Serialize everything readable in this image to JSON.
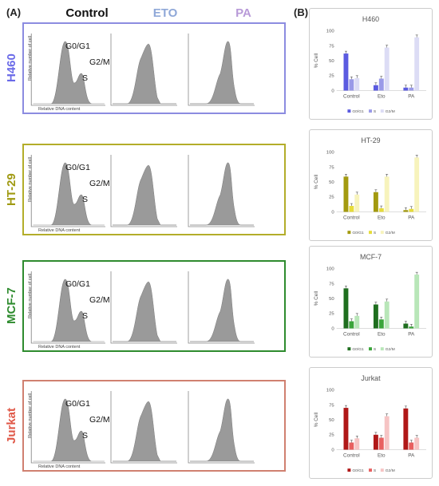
{
  "panel_labels": {
    "a": "(A)",
    "b": "(B)"
  },
  "column_headers": [
    {
      "label": "Control",
      "color": "#111111"
    },
    {
      "label": "ETO",
      "color": "#8fa8d8"
    },
    {
      "label": "PA",
      "color": "#b89ad8"
    }
  ],
  "axis_text": {
    "y": "Relative number of cell",
    "x": "Relative DNA content"
  },
  "peak_labels": {
    "g0g1": "G0/G1",
    "s": "S",
    "g2m": "G2/M"
  },
  "cell_lines": [
    {
      "name": "H460",
      "color": "#6a6ae8",
      "border": "#8c8ce0"
    },
    {
      "name": "HT-29",
      "color": "#a09a12",
      "border": "#b3ad2a"
    },
    {
      "name": "MCF-7",
      "color": "#2e8b2e",
      "border": "#2e8b2e"
    },
    {
      "name": "Jurkat",
      "color": "#e05a4a",
      "border": "#d08070"
    }
  ],
  "chart_data": [
    {
      "type": "bar",
      "title": "H460",
      "ylabel": "% Cell",
      "categories": [
        "Control",
        "Eto",
        "PA"
      ],
      "ylim": [
        0,
        100
      ],
      "yticks": [
        "0",
        "25",
        "50",
        "75",
        "100"
      ],
      "series": [
        {
          "name": "G0/G1",
          "color": "#5b5be0",
          "values": [
            62,
            9,
            5
          ]
        },
        {
          "name": "S",
          "color": "#9a9ae8",
          "values": [
            19,
            20,
            5
          ]
        },
        {
          "name": "G2/M",
          "color": "#dcdcf5",
          "values": [
            21,
            72,
            89
          ]
        }
      ]
    },
    {
      "type": "bar",
      "title": "HT-29",
      "ylabel": "% Cell",
      "categories": [
        "Control",
        "Eto",
        "PA"
      ],
      "ylim": [
        0,
        100
      ],
      "yticks": [
        "0",
        "25",
        "50",
        "75",
        "100"
      ],
      "series": [
        {
          "name": "G0/G1",
          "color": "#a39a10",
          "values": [
            59,
            33,
            3
          ]
        },
        {
          "name": "S",
          "color": "#e6dc3a",
          "values": [
            10,
            6,
            5
          ]
        },
        {
          "name": "G2/M",
          "color": "#f7f3bc",
          "values": [
            29,
            59,
            91
          ]
        }
      ]
    },
    {
      "type": "bar",
      "title": "MCF-7",
      "ylabel": "% Cell",
      "categories": [
        "Control",
        "Eto",
        "PA"
      ],
      "ylim": [
        0,
        100
      ],
      "yticks": [
        "0",
        "25",
        "50",
        "75",
        "100"
      ],
      "series": [
        {
          "name": "G0/G1",
          "color": "#1f6e1f",
          "values": [
            67,
            40,
            8
          ]
        },
        {
          "name": "S",
          "color": "#3aa53a",
          "values": [
            12,
            15,
            3
          ]
        },
        {
          "name": "G2/M",
          "color": "#b8e6b8",
          "values": [
            21,
            45,
            90
          ]
        }
      ]
    },
    {
      "type": "bar",
      "title": "Jurkat",
      "ylabel": "% Cell",
      "categories": [
        "Control",
        "Eto",
        "PA"
      ],
      "ylim": [
        0,
        100
      ],
      "yticks": [
        "0",
        "25",
        "50",
        "75",
        "100"
      ],
      "series": [
        {
          "name": "G0/G1",
          "color": "#b01818",
          "values": [
            70,
            25,
            69
          ]
        },
        {
          "name": "S",
          "color": "#e86060",
          "values": [
            12,
            20,
            12
          ]
        },
        {
          "name": "G2/M",
          "color": "#f6c4c4",
          "values": [
            19,
            56,
            20
          ]
        }
      ]
    }
  ]
}
